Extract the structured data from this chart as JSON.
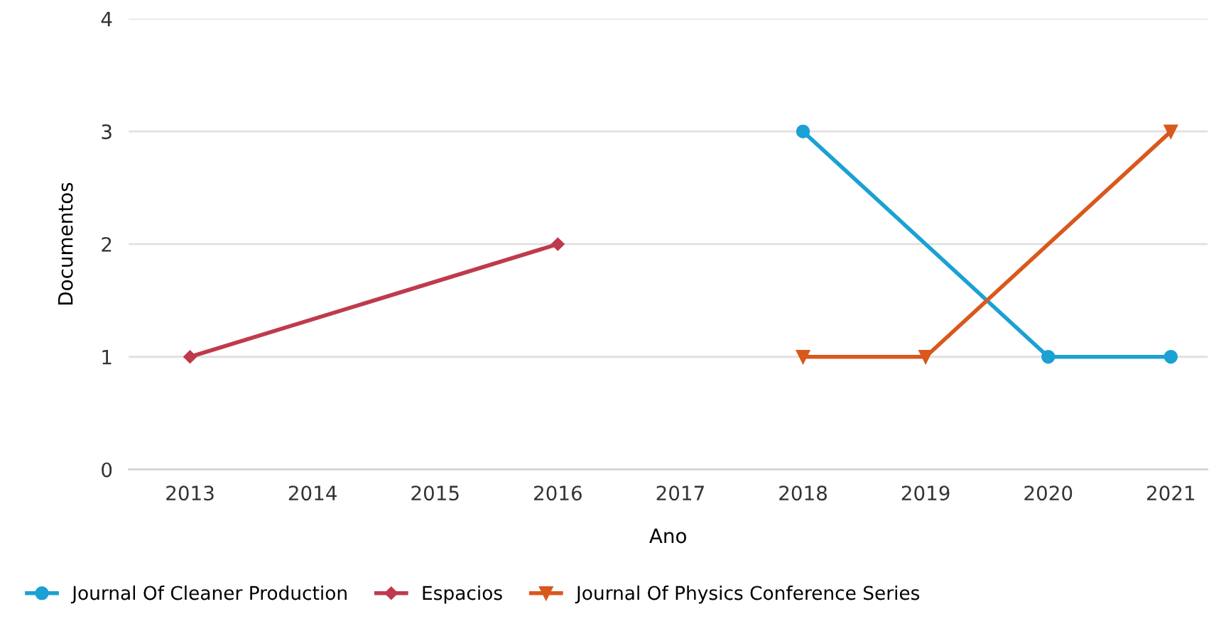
{
  "chart_data": {
    "type": "line",
    "xlabel": "Ano",
    "ylabel": "Documentos",
    "xlim": [
      2012.5,
      2021.3
    ],
    "xticks": [
      2013,
      2014,
      2015,
      2016,
      2017,
      2018,
      2019,
      2020,
      2021
    ],
    "ylim": [
      0,
      4
    ],
    "yticks": [
      0,
      1,
      2,
      3,
      4
    ],
    "grid": "y",
    "legend": "bottom left",
    "series": [
      {
        "name": "Journal Of Cleaner Production",
        "color": "#1ba1d3",
        "marker": "circle",
        "x": [
          2018,
          2020,
          2021
        ],
        "values": [
          3,
          1,
          1
        ]
      },
      {
        "name": "Espacios",
        "color": "#bf3a4d",
        "marker": "diamond",
        "x": [
          2013,
          2016
        ],
        "values": [
          1,
          2
        ]
      },
      {
        "name": "Journal Of Physics Conference Series",
        "color": "#d9581c",
        "marker": "triangle",
        "x": [
          2018,
          2019,
          2021
        ],
        "values": [
          1,
          1,
          3
        ]
      }
    ]
  }
}
